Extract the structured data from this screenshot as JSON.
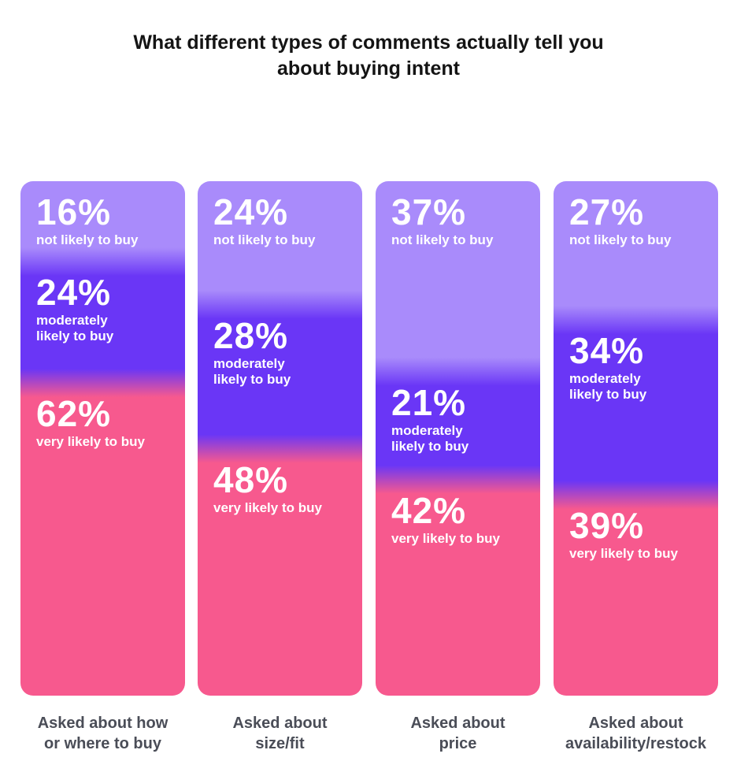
{
  "chart_data": {
    "type": "bar",
    "stacked": true,
    "normalized": true,
    "title": [
      "What different types of comments actually tell you",
      "about buying intent"
    ],
    "categories": [
      [
        "Asked about how",
        "or where to buy"
      ],
      [
        "Asked about",
        "size/fit"
      ],
      [
        "Asked about",
        "price"
      ],
      [
        "Asked about",
        "availability/restock"
      ]
    ],
    "series": [
      {
        "name": "not likely to buy",
        "color": "#a98bfb",
        "values": [
          16,
          24,
          37,
          27
        ]
      },
      {
        "name": "moderately likely to buy",
        "color": "#6a36f6",
        "values": [
          24,
          28,
          21,
          34
        ]
      },
      {
        "name": "very likely to buy",
        "color": "#f7598e",
        "values": [
          62,
          48,
          42,
          39
        ]
      }
    ],
    "value_labels": [
      [
        "16%",
        "24%",
        "62%"
      ],
      [
        "24%",
        "28%",
        "48%"
      ],
      [
        "37%",
        "21%",
        "42%"
      ],
      [
        "27%",
        "34%",
        "39%"
      ]
    ],
    "segment_labels": [
      "not likely to buy",
      "moderately likely to buy",
      "very likely to buy"
    ],
    "segment_label_lines": [
      [
        "not likely to buy"
      ],
      [
        "moderately",
        "likely to buy"
      ],
      [
        "very likely to buy"
      ]
    ],
    "legend": "none",
    "grid": false
  }
}
